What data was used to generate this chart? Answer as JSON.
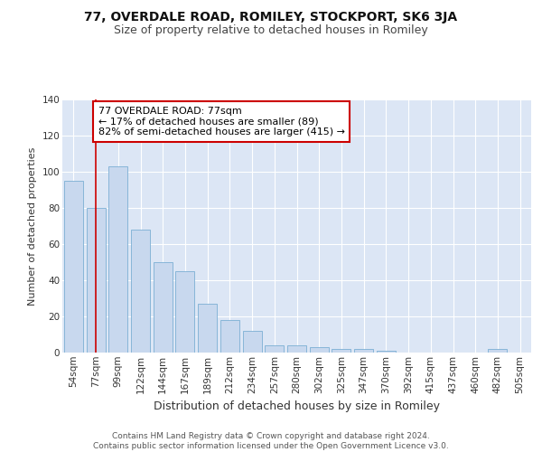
{
  "title": "77, OVERDALE ROAD, ROMILEY, STOCKPORT, SK6 3JA",
  "subtitle": "Size of property relative to detached houses in Romiley",
  "xlabel": "Distribution of detached houses by size in Romiley",
  "ylabel": "Number of detached properties",
  "categories": [
    "54sqm",
    "77sqm",
    "99sqm",
    "122sqm",
    "144sqm",
    "167sqm",
    "189sqm",
    "212sqm",
    "234sqm",
    "257sqm",
    "280sqm",
    "302sqm",
    "325sqm",
    "347sqm",
    "370sqm",
    "392sqm",
    "415sqm",
    "437sqm",
    "460sqm",
    "482sqm",
    "505sqm"
  ],
  "values": [
    95,
    80,
    103,
    68,
    50,
    45,
    27,
    18,
    12,
    4,
    4,
    3,
    2,
    2,
    1,
    0,
    0,
    0,
    0,
    2,
    0
  ],
  "bar_color": "#c8d8ee",
  "bar_edge_color": "#7bafd4",
  "highlight_bar_index": 1,
  "highlight_line_color": "#cc0000",
  "annotation_text": "77 OVERDALE ROAD: 77sqm\n← 17% of detached houses are smaller (89)\n82% of semi-detached houses are larger (415) →",
  "annotation_box_color": "#ffffff",
  "annotation_box_edge_color": "#cc0000",
  "ylim": [
    0,
    140
  ],
  "yticks": [
    0,
    20,
    40,
    60,
    80,
    100,
    120,
    140
  ],
  "fig_bg_color": "#ffffff",
  "plot_bg_color": "#dce6f5",
  "footer_text": "Contains HM Land Registry data © Crown copyright and database right 2024.\nContains public sector information licensed under the Open Government Licence v3.0.",
  "title_fontsize": 10,
  "subtitle_fontsize": 9,
  "xlabel_fontsize": 9,
  "ylabel_fontsize": 8,
  "tick_fontsize": 7.5,
  "annotation_fontsize": 8,
  "footer_fontsize": 6.5
}
